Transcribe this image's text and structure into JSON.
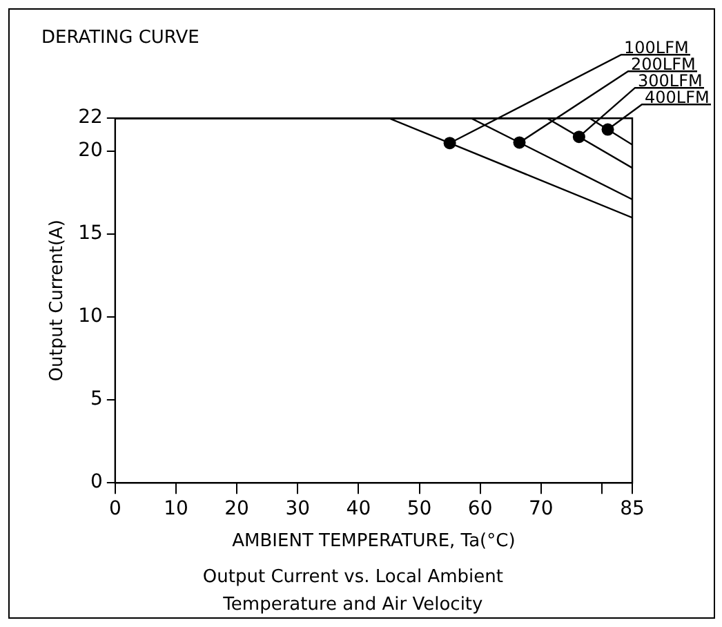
{
  "chart_data": {
    "type": "line",
    "title": "DERATING CURVE",
    "xlabel": "AMBIENT TEMPERATURE, Ta(°C)",
    "ylabel": "Output Current(A)",
    "annotations": [
      "Output Current vs. Local Ambient",
      "Temperature and Air Velocity"
    ],
    "series": [
      {
        "name": "100LFM",
        "color": "#000000",
        "x": [
          0,
          45,
          85
        ],
        "values": [
          22,
          22,
          16
        ]
      },
      {
        "name": "200LFM",
        "color": "#000000",
        "x": [
          0,
          58.5,
          85
        ],
        "values": [
          22,
          22,
          17.1
        ]
      },
      {
        "name": "300LFM",
        "color": "#000000",
        "x": [
          0,
          71,
          85
        ],
        "values": [
          22,
          22,
          19
        ]
      },
      {
        "name": "400LFM",
        "color": "#000000",
        "x": [
          0,
          78,
          85
        ],
        "values": [
          22,
          22,
          20.4
        ]
      }
    ],
    "xlim": [
      0,
      85
    ],
    "xticks": [
      0,
      10,
      20,
      30,
      40,
      50,
      60,
      70,
      {
        "value": 80,
        "label": null
      },
      85
    ],
    "ylim": [
      0,
      22
    ],
    "yticks": [
      0,
      5,
      10,
      15,
      20,
      22
    ],
    "grid": false,
    "legend": false,
    "marker": "none",
    "line_style": "solid"
  }
}
